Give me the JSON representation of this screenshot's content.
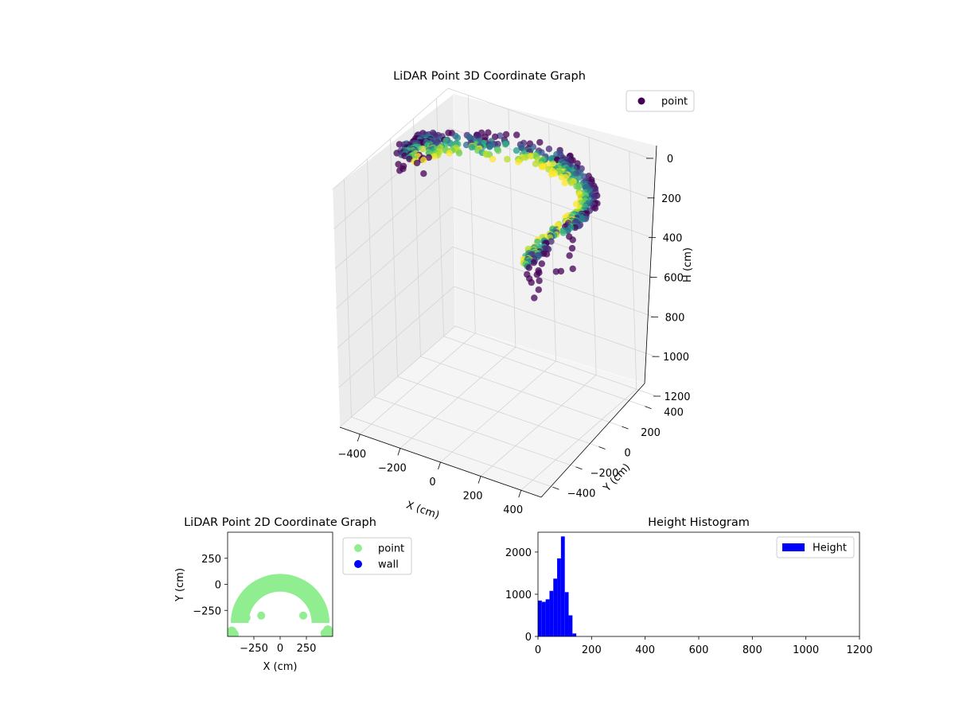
{
  "chart_data": [
    {
      "type": "scatter",
      "projection": "3d",
      "title": "LiDAR Point 3D Coordinate Graph",
      "xlabel": "X (cm)",
      "ylabel": "Y (cm)",
      "zlabel": "H (cm)",
      "xlim": [
        -500,
        500
      ],
      "ylim": [
        -500,
        500
      ],
      "zlim": [
        1200,
        0
      ],
      "xticks": [
        "−400",
        "−200",
        "0",
        "200",
        "400"
      ],
      "yticks": [
        "−400",
        "−200",
        "0",
        "200",
        "400"
      ],
      "zticks": [
        "0",
        "200",
        "400",
        "600",
        "800",
        "1000",
        "1200"
      ],
      "grid": true,
      "colormap": "viridis",
      "legend": {
        "entries": [
          "point"
        ],
        "placement": "top-right"
      },
      "series": [
        {
          "name": "point",
          "description_points": "arc of points at radius about 350–480 cm, angle 0°–180° (y ≥ ~−480), heights mostly 0–150 cm",
          "points": [
            {
              "x": -470,
              "y": 0,
              "h": 30
            },
            {
              "x": -455,
              "y": 120,
              "h": 40
            },
            {
              "x": -420,
              "y": 200,
              "h": 60
            },
            {
              "x": -340,
              "y": 300,
              "h": 80
            },
            {
              "x": -240,
              "y": 380,
              "h": 90
            },
            {
              "x": -120,
              "y": 440,
              "h": 95
            },
            {
              "x": 0,
              "y": 460,
              "h": 100
            },
            {
              "x": 120,
              "y": 440,
              "h": 95
            },
            {
              "x": 240,
              "y": 380,
              "h": 90
            },
            {
              "x": 340,
              "y": 300,
              "h": 85
            },
            {
              "x": 420,
              "y": 200,
              "h": 70
            },
            {
              "x": 460,
              "y": 60,
              "h": 60
            },
            {
              "x": 470,
              "y": -60,
              "h": 50
            },
            {
              "x": 450,
              "y": -180,
              "h": 60
            },
            {
              "x": 430,
              "y": -300,
              "h": 80
            },
            {
              "x": 420,
              "y": -420,
              "h": 100
            }
          ]
        }
      ]
    },
    {
      "type": "scatter",
      "title": "LiDAR Point 2D Coordinate Graph",
      "xlabel": "X (cm)",
      "ylabel": "Y (cm)",
      "xlim": [
        -500,
        500
      ],
      "ylim": [
        -500,
        500
      ],
      "xticks": [
        "−250",
        "0",
        "250"
      ],
      "yticks": [
        "250",
        "0",
        "−250"
      ],
      "legend": {
        "entries": [
          "point",
          "wall"
        ],
        "placement": "right-outside"
      },
      "series": [
        {
          "name": "point",
          "color": "#90ee90",
          "shape": "half-annulus, outer radius ~470 cm, inner radius ~300 cm, centered at (0, -370)"
        },
        {
          "name": "wall",
          "color": "#0000ff",
          "points": []
        }
      ]
    },
    {
      "type": "bar",
      "subtype": "histogram",
      "title": "Height Histogram",
      "xlim": [
        0,
        1200
      ],
      "ylim": [
        0,
        2470
      ],
      "xticks": [
        "0",
        "200",
        "400",
        "600",
        "800",
        "1000",
        "1200"
      ],
      "yticks": [
        "0",
        "1000",
        "2000"
      ],
      "legend": {
        "entries": [
          "Height"
        ],
        "placement": "top-right"
      },
      "bin_width": 14.3,
      "series": [
        {
          "name": "Height",
          "color": "#0000ff",
          "bin_starts": [
            0,
            14.3,
            28.6,
            42.9,
            57.2,
            71.5,
            85.8,
            100.1,
            114.4,
            128.7
          ],
          "values": [
            850,
            820,
            880,
            1080,
            1370,
            1850,
            2370,
            1050,
            500,
            70
          ]
        }
      ]
    }
  ]
}
